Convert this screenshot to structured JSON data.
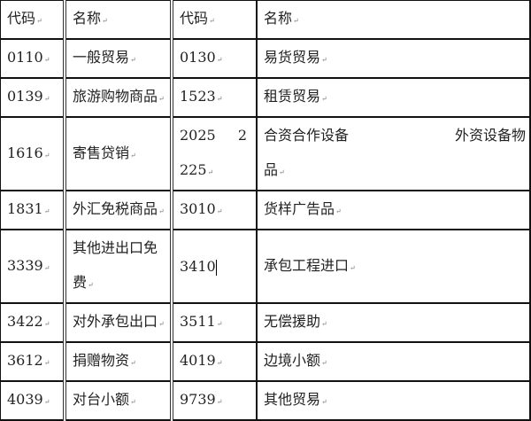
{
  "header": [
    "代码",
    "名称",
    "代码",
    "名称"
  ],
  "rows": [
    {
      "c1": "0110",
      "n1": "一般贸易",
      "c2": "0130",
      "n2": "易货贸易"
    },
    {
      "c1": "0139",
      "n1": "旅游购物商品",
      "c2": "1523",
      "n2": "租赁贸易"
    },
    {
      "c1": "1616",
      "n1": "寄售贷销",
      "c2_lines": [
        "2025",
        "2",
        "225"
      ],
      "n2_lines": [
        "合资合作设备",
        "外资设备物",
        "品"
      ]
    },
    {
      "c1": "1831",
      "n1": "外汇免税商品",
      "c2": "3010",
      "n2": "货样广告品"
    },
    {
      "c1": "3339",
      "n1_lines": [
        "其他进出口免",
        "费"
      ],
      "c2": "3410",
      "n2": "承包工程进口"
    },
    {
      "c1": "3422",
      "n1": "对外承包出口",
      "c2": "3511",
      "n2": "无偿援助"
    },
    {
      "c1": "3612",
      "n1": "捐赠物资",
      "c2": "4019",
      "n2": "边境小额"
    },
    {
      "c1": "4039",
      "n1": "对台小额",
      "c2": "9739",
      "n2": "其他贸易"
    }
  ]
}
